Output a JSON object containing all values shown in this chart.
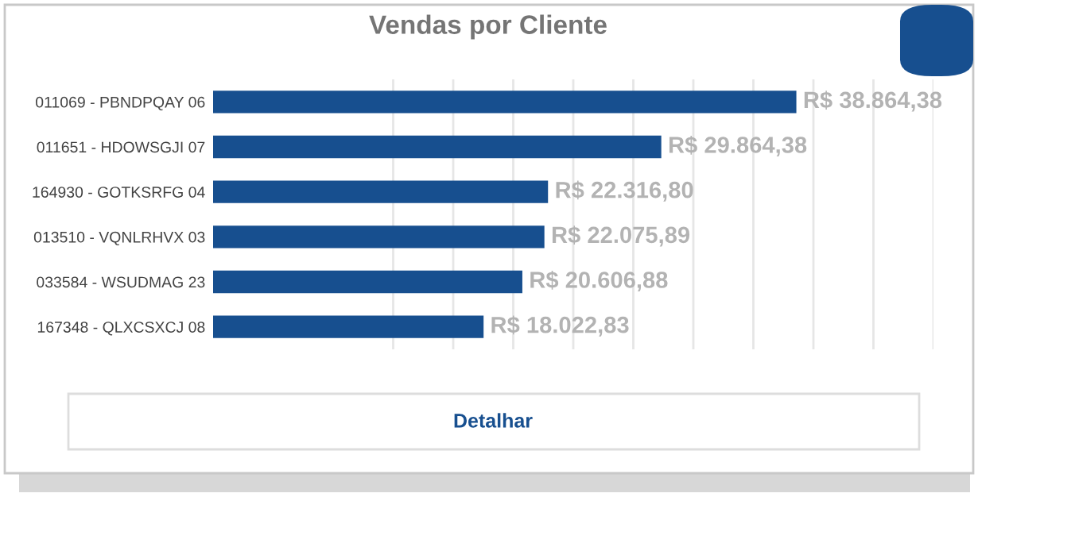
{
  "chart_data": {
    "type": "bar",
    "orientation": "horizontal",
    "title": "Vendas por Cliente",
    "categories": [
      "011069 - PBNDPQAY 06",
      "011651 - HDOWSGJI 07",
      "164930 - GOTKSRFG 04",
      "013510 - VQNLRHVX 03",
      "033584 - WSUDMAG 23",
      "167348 - QLXCSXCJ 08"
    ],
    "values": [
      38864.38,
      29864.38,
      22316.8,
      22075.89,
      20606.88,
      18022.83
    ],
    "value_labels": [
      "R$ 38.864,38",
      "R$ 29.864,38",
      "R$ 22.316,80",
      "R$ 22.075,89",
      "R$ 20.606,88",
      "R$ 18.022,83"
    ],
    "color": "#174f8f",
    "xlim": [
      0,
      48000
    ],
    "xticks": [
      {
        "value": 12000,
        "label": null
      },
      {
        "value": 16000,
        "label": null
      },
      {
        "value": 20000,
        "label": null
      },
      {
        "value": 24000,
        "label": null
      },
      {
        "value": 28000,
        "label": null
      },
      {
        "value": 32000,
        "label": null
      },
      {
        "value": 36000,
        "label": null
      },
      {
        "value": 40000,
        "label": null
      },
      {
        "value": 44000,
        "label": null
      },
      {
        "value": 48000,
        "label": null
      }
    ],
    "grid": "x",
    "tick_labels": "y",
    "annotations": [
      "Detalhar"
    ]
  }
}
